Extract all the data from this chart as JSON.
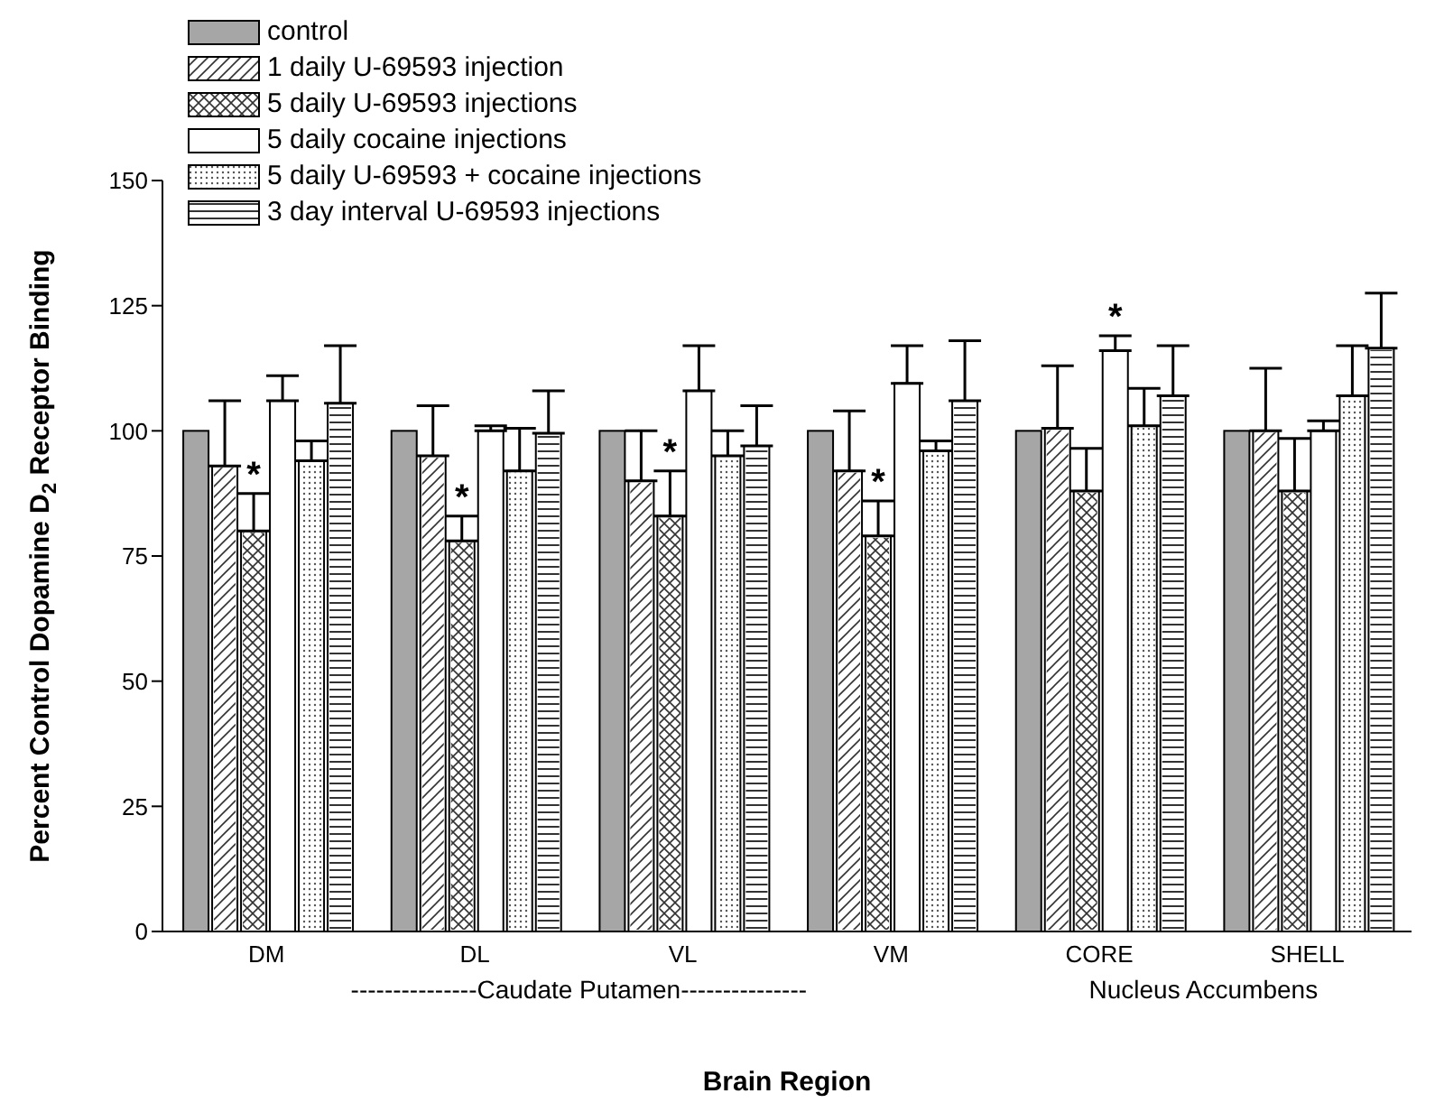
{
  "chart_data": {
    "type": "bar",
    "xlabel": "Brain Region",
    "ylabel": "Percent Control Dopamine D$_{2}$ Receptor Binding",
    "categories": [
      "DM",
      "DL",
      "VL",
      "VM",
      "CORE",
      "SHELL"
    ],
    "ylim": [
      0,
      150
    ],
    "yticks": [
      0,
      25,
      50,
      75,
      100,
      125,
      150
    ],
    "grid": false,
    "legend": "top left",
    "annotations": [
      "---------------Caudate Putamen---------------",
      "Nucleus Accumbens"
    ],
    "series": [
      {
        "name": "control",
        "color": "#a6a6a6",
        "values": [
          100,
          100,
          100,
          100,
          100,
          100
        ]
      },
      {
        "name": "1 daily U-69593 injection",
        "color": "#ffffff",
        "values": [
          93,
          95,
          90,
          92,
          100.5,
          100
        ],
        "errors": [
          [
            93,
            106
          ],
          [
            95,
            105
          ],
          [
            90,
            100
          ],
          [
            92,
            104
          ],
          [
            100.5,
            113
          ],
          [
            100,
            112.5
          ]
        ]
      },
      {
        "name": "5 daily U-69593 injections",
        "color": "#ffffff",
        "values": [
          80,
          78,
          83,
          79,
          88,
          88
        ],
        "errors": [
          [
            80,
            87.5
          ],
          [
            78,
            83
          ],
          [
            83,
            92
          ],
          [
            79,
            86
          ],
          [
            88,
            96.5
          ],
          [
            88,
            98.5
          ]
        ],
        "value_labels": [
          "*",
          "*",
          "*",
          "*",
          null,
          null
        ]
      },
      {
        "name": "5 daily cocaine injections",
        "color": "#ffffff",
        "values": [
          106,
          100,
          108,
          109.5,
          116,
          100
        ],
        "errors": [
          [
            106,
            111
          ],
          [
            100,
            101
          ],
          [
            108,
            117
          ],
          [
            109.5,
            117
          ],
          [
            116,
            119
          ],
          [
            100,
            102
          ]
        ],
        "value_labels": [
          null,
          null,
          null,
          null,
          "*",
          null
        ]
      },
      {
        "name": "5 daily U-69593 + cocaine injections",
        "color": "#ffffff",
        "values": [
          94,
          92,
          95,
          96,
          101,
          107
        ],
        "errors": [
          [
            94,
            98
          ],
          [
            92,
            100.5
          ],
          [
            95,
            100
          ],
          [
            96,
            98
          ],
          [
            101,
            108.5
          ],
          [
            107,
            117
          ]
        ]
      },
      {
        "name": "3 day interval U-69593 injections",
        "color": "#ffffff",
        "values": [
          105.5,
          99.5,
          97,
          106,
          107,
          116.5
        ],
        "errors": [
          [
            105.5,
            117
          ],
          [
            99.5,
            108
          ],
          [
            97,
            105
          ],
          [
            106,
            118
          ],
          [
            107,
            117
          ],
          [
            116.5,
            127.5
          ]
        ]
      }
    ]
  }
}
